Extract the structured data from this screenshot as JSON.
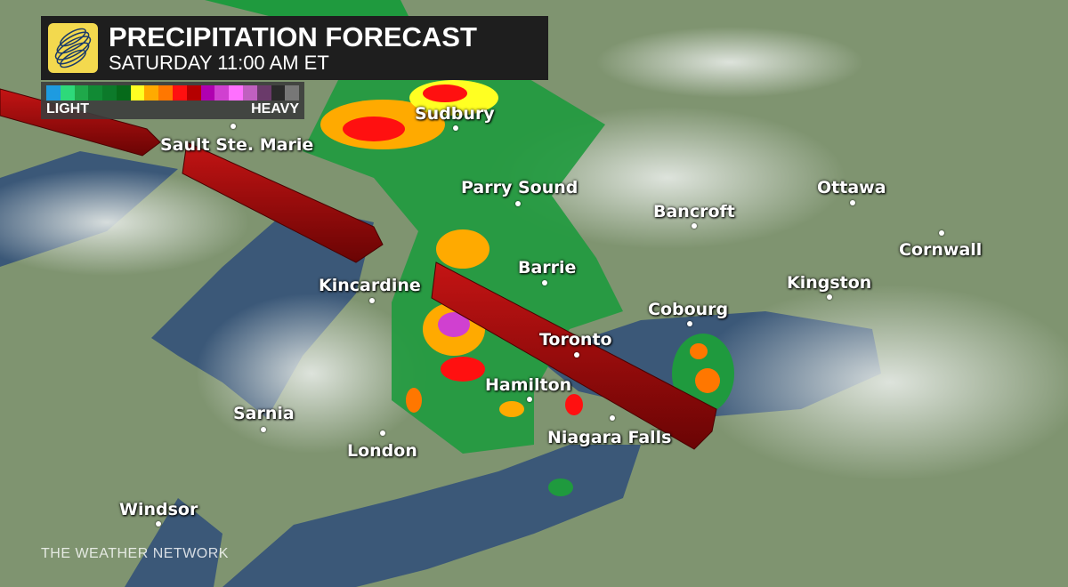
{
  "header": {
    "title": "PRECIPITATION FORECAST",
    "subtitle": "SATURDAY 11:00 AM ET",
    "logo": "the-weather-network-globe-logo"
  },
  "legend": {
    "light_label": "LIGHT",
    "heavy_label": "HEAVY",
    "colors": [
      "#1e9be0",
      "#2ed97a",
      "#1fa84a",
      "#118a34",
      "#0c7a2a",
      "#066a1a",
      "#ffff22",
      "#ffaa00",
      "#ff7700",
      "#ff1010",
      "#b50000",
      "#b000b0",
      "#d040d0",
      "#ff70ff",
      "#c060c0",
      "#6a3a6a",
      "#2a2a2a",
      "#777777"
    ]
  },
  "cities": [
    {
      "name": "Sudbury"
    },
    {
      "name": "Sault Ste. Marie"
    },
    {
      "name": "Parry Sound"
    },
    {
      "name": "Bancroft"
    },
    {
      "name": "Ottawa"
    },
    {
      "name": "Cornwall"
    },
    {
      "name": "Barrie"
    },
    {
      "name": "Kincardine"
    },
    {
      "name": "Kingston"
    },
    {
      "name": "Cobourg"
    },
    {
      "name": "Toronto"
    },
    {
      "name": "Hamilton"
    },
    {
      "name": "Niagara Falls"
    },
    {
      "name": "Sarnia"
    },
    {
      "name": "London"
    },
    {
      "name": "Windsor"
    }
  ],
  "brand": "THE WEATHER NETWORK",
  "colors": {
    "storm_track": "#8e0a0a",
    "land": "#7d8f6a",
    "water": "#3a5777"
  }
}
